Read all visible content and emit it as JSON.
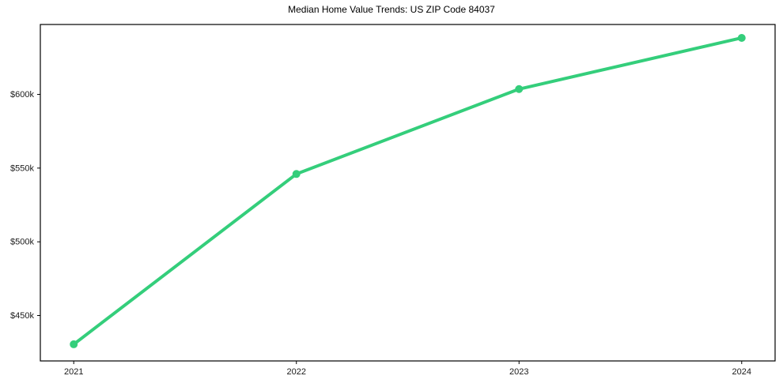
{
  "chart_data": {
    "type": "line",
    "title": "Median Home Value Trends: US ZIP Code 84037",
    "xlabel": "",
    "ylabel": "",
    "x": [
      2021,
      2022,
      2023,
      2024
    ],
    "xtick_labels": [
      "2021",
      "2022",
      "2023",
      "2024"
    ],
    "series": [
      {
        "name": "Median Home Value",
        "values": [
          430500,
          546000,
          603600,
          638300
        ]
      }
    ],
    "yticks": [
      450000,
      500000,
      550000,
      600000
    ],
    "ytick_labels": [
      "$450k",
      "$500k",
      "$550k",
      "$600k"
    ],
    "xlim": [
      2020.85,
      2024.15
    ],
    "ylim": [
      419200,
      647400
    ],
    "grid": false,
    "legend": "none",
    "line_color": "#34ce7b",
    "marker_color": "#34ce7b",
    "spine_color": "#000000",
    "tick_label_color": "#1a1a1a",
    "background_color": "#ffffff"
  }
}
